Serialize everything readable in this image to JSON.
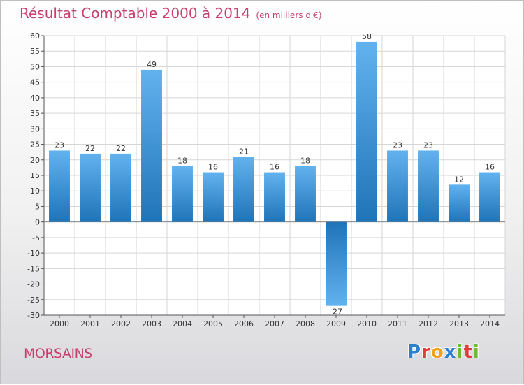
{
  "header": {
    "title": "Résultat Comptable 2000 à 2014",
    "subtitle": "(en milliers d'€)"
  },
  "footer": {
    "commune": "MORSAINS",
    "logo_letters": [
      "P",
      "r",
      "o",
      "x",
      "i",
      "t",
      "i"
    ],
    "logo_colors": [
      "#2e7fd0",
      "#e23b3b",
      "#f0a21c",
      "#2e7fd0",
      "#6cba2f",
      "#e23b3b",
      "#6cba2f"
    ]
  },
  "colors": {
    "title": "#c8406e",
    "bar_light": "#62b2ee",
    "bar_dark": "#1f74b8",
    "grid": "#d6d6d6"
  },
  "chart_data": {
    "type": "bar",
    "title": "Résultat Comptable 2000 à 2014",
    "subtitle": "(en milliers d'€)",
    "categories": [
      "2000",
      "2001",
      "2002",
      "2003",
      "2004",
      "2005",
      "2006",
      "2007",
      "2008",
      "2009",
      "2010",
      "2011",
      "2012",
      "2013",
      "2014"
    ],
    "values": [
      23,
      22,
      22,
      49,
      18,
      16,
      21,
      16,
      18,
      -27,
      58,
      23,
      23,
      12,
      16
    ],
    "ylim": [
      -30,
      60
    ],
    "ytick_step": 5,
    "grid": true
  }
}
